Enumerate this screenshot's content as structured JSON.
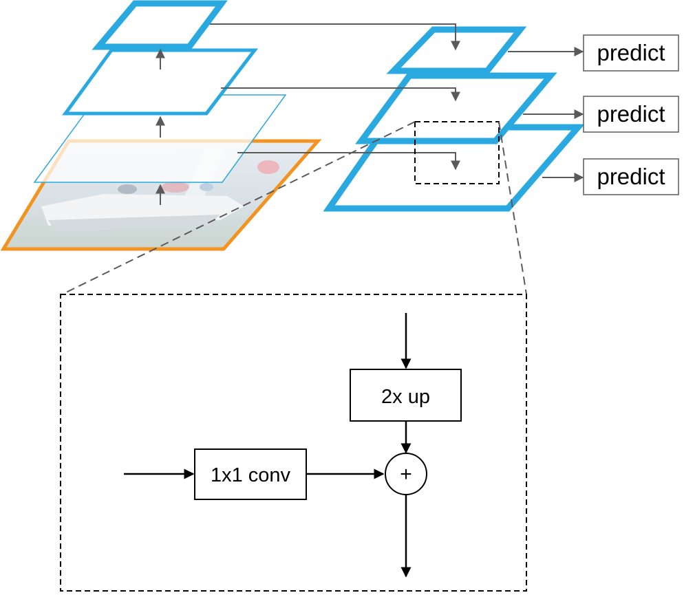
{
  "colors": {
    "pyramid_blue": "#29a9e0",
    "image_orange": "#f39320",
    "arrow_gray": "#5a5a5a",
    "dashed_gray": "#5a5a5a",
    "black": "#000000",
    "white": "#ffffff"
  },
  "predict_labels": [
    "predict",
    "predict",
    "predict"
  ],
  "detail": {
    "upsample_label": "2x up",
    "lateral_label": "1x1 conv",
    "add_symbol": "+"
  },
  "icons": {
    "input_image": "sailboat-photo-icon"
  }
}
